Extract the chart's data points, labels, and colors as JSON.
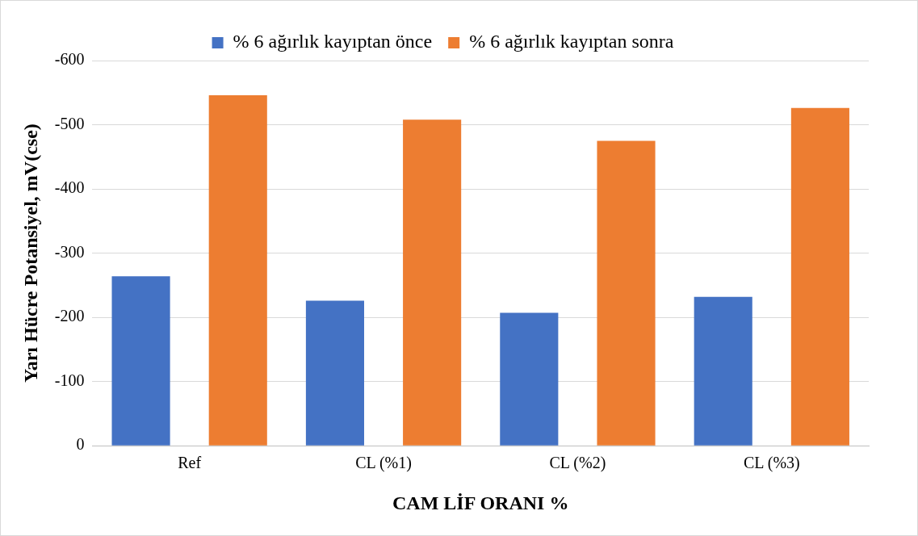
{
  "chart_data": {
    "type": "bar",
    "xlabel": "CAM LİF ORANI %",
    "ylabel": "Yarı Hücre Potansiyel, mV(cse)",
    "categories": [
      "Ref",
      "CL (%1)",
      "CL (%2)",
      "CL (%3)"
    ],
    "series": [
      {
        "name": "% 6 ağırlık kayıptan önce",
        "color": "#4472c4",
        "values": [
          -264,
          -226,
          -207,
          -232
        ]
      },
      {
        "name": "% 6 ağırlık kayıptan sonra",
        "color": "#ed7d31",
        "values": [
          -546,
          -508,
          -475,
          -526
        ]
      }
    ],
    "ylim": [
      0,
      -600
    ],
    "yticks": [
      0,
      -100,
      -200,
      -300,
      -400,
      -500,
      -600
    ],
    "grid": "y",
    "legend": "top"
  }
}
